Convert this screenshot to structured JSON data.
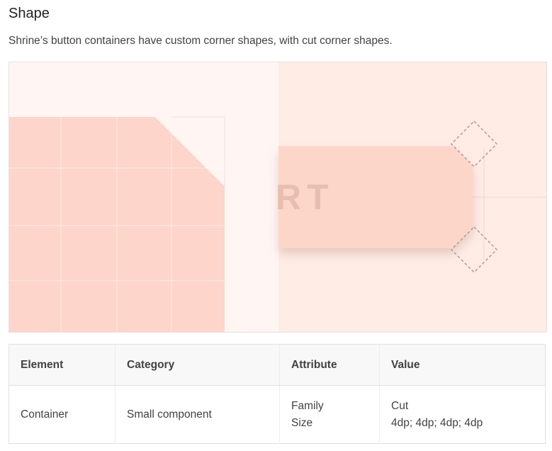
{
  "section": {
    "title": "Shape",
    "description": "Shrine’s button containers have custom corner shapes, with cut corner shapes."
  },
  "figure": {
    "button_text": "RT",
    "colors": {
      "left_panel": "#fff6f4",
      "right_panel": "#ffece5",
      "shape_fill": "#fdd5ca",
      "button_fill": "#fdd6ca",
      "button_text": "#e8beb1",
      "diamond_stroke": "#b49a92"
    }
  },
  "table": {
    "headers": [
      "Element",
      "Category",
      "Attribute",
      "Value"
    ],
    "rows": [
      {
        "element": "Container",
        "category": "Small component",
        "attribute": [
          "Family",
          "Size"
        ],
        "value": [
          "Cut",
          "4dp; 4dp; 4dp; 4dp"
        ]
      }
    ]
  }
}
